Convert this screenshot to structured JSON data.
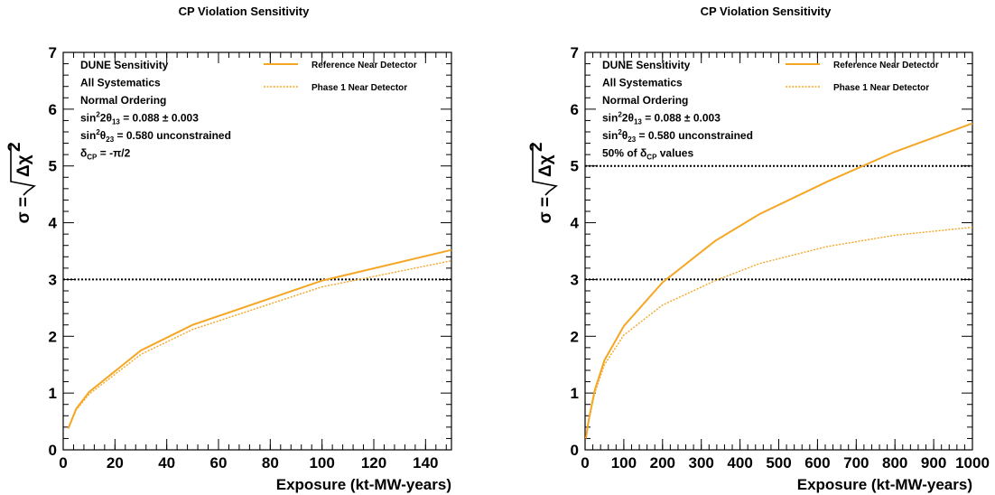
{
  "chart_data": [
    {
      "type": "line",
      "title": "CP Violation Sensitivity",
      "xlabel": "Exposure (kt-MW-years)",
      "ylabel": "σ = √(Δχ²)",
      "xlim": [
        0,
        150
      ],
      "ylim": [
        0,
        7
      ],
      "x_ticks": [
        "0",
        "20",
        "40",
        "60",
        "80",
        "100",
        "120",
        "140"
      ],
      "y_ticks": [
        "0",
        "1",
        "2",
        "3",
        "4",
        "5",
        "6",
        "7"
      ],
      "annotations": [
        {
          "text": "DUNE Sensitivity"
        },
        {
          "text": "All Systematics"
        },
        {
          "text": "Normal Ordering"
        },
        {
          "pre": "sin",
          "sup": "2",
          "mid": "2θ",
          "sub": "13",
          "post": " = 0.088 ± 0.003"
        },
        {
          "pre": "sin",
          "sup": "2",
          "mid": "θ",
          "sub": "23",
          "post": " = 0.580 unconstrained"
        },
        {
          "pre": "δ",
          "sub": "CP",
          "post": " = -π/2"
        }
      ],
      "legend": {
        "position": "top-right"
      },
      "reference_lines": [
        3
      ],
      "series": [
        {
          "name": "Reference Near Detector",
          "style": "solid",
          "x": [
            2,
            5,
            10,
            30,
            50,
            100,
            150
          ],
          "y": [
            0.38,
            0.72,
            1.02,
            1.75,
            2.2,
            2.98,
            3.52
          ]
        },
        {
          "name": "Phase 1 Near Detector",
          "style": "dotted",
          "x": [
            2,
            5,
            10,
            30,
            50,
            100,
            150
          ],
          "y": [
            0.37,
            0.7,
            0.98,
            1.68,
            2.12,
            2.87,
            3.33
          ]
        }
      ]
    },
    {
      "type": "line",
      "title": "CP Violation Sensitivity",
      "xlabel": "Exposure (kt-MW-years)",
      "ylabel": "σ = √(Δχ²)",
      "xlim": [
        0,
        1000
      ],
      "ylim": [
        0,
        7
      ],
      "x_ticks": [
        "0",
        "100",
        "200",
        "300",
        "400",
        "500",
        "600",
        "700",
        "800",
        "900",
        "1000"
      ],
      "y_ticks": [
        "0",
        "1",
        "2",
        "3",
        "4",
        "5",
        "6",
        "7"
      ],
      "annotations": [
        {
          "text": "DUNE Sensitivity"
        },
        {
          "text": "All Systematics"
        },
        {
          "text": "Normal Ordering"
        },
        {
          "pre": "sin",
          "sup": "2",
          "mid": "2θ",
          "sub": "13",
          "post": " = 0.088 ± 0.003"
        },
        {
          "pre": "sin",
          "sup": "2",
          "mid": "θ",
          "sub": "23",
          "post": " = 0.580 unconstrained"
        },
        {
          "pre": "50% of δ",
          "sub": "CP",
          "post": " values"
        }
      ],
      "legend": {
        "position": "top-right"
      },
      "reference_lines": [
        3,
        5
      ],
      "series": [
        {
          "name": "Reference Near Detector",
          "style": "solid",
          "x": [
            2,
            10,
            25,
            50,
            100,
            200,
            336,
            450,
            624,
            800,
            1000
          ],
          "y": [
            0.2,
            0.55,
            1.05,
            1.58,
            2.18,
            2.95,
            3.68,
            4.15,
            4.72,
            5.25,
            5.75
          ]
        },
        {
          "name": "Phase 1 Near Detector",
          "style": "dotted",
          "x": [
            2,
            10,
            25,
            50,
            100,
            200,
            336,
            450,
            624,
            800,
            1000
          ],
          "y": [
            0.2,
            0.53,
            1.0,
            1.5,
            2.02,
            2.55,
            2.98,
            3.28,
            3.58,
            3.78,
            3.92
          ]
        }
      ]
    }
  ],
  "colors": {
    "series_color": "#f5a623",
    "reference_line_color": "#000000"
  }
}
